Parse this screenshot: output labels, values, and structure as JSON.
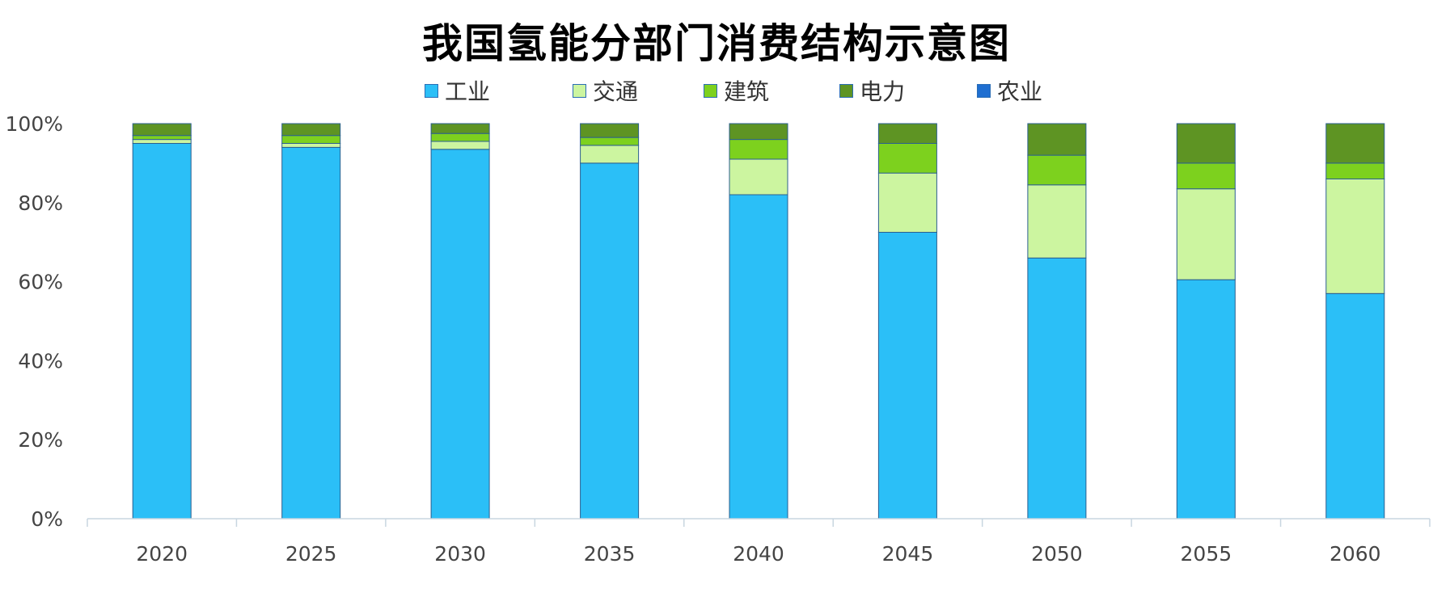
{
  "chart_data": {
    "type": "bar",
    "stacked": true,
    "title": "我国氢能分部门消费结构示意图",
    "xlabel": "",
    "ylabel": "",
    "ylim": [
      0,
      100
    ],
    "y_ticks": [
      "0%",
      "20%",
      "40%",
      "60%",
      "80%",
      "100%"
    ],
    "y_tick_values": [
      0,
      20,
      40,
      60,
      80,
      100
    ],
    "legend_position": "top-center",
    "categories": [
      "2020",
      "2025",
      "2030",
      "2035",
      "2040",
      "2045",
      "2050",
      "2055",
      "2060"
    ],
    "series": [
      {
        "name": "工业",
        "color": "#2bbff7",
        "values": [
          95,
          94,
          93.5,
          90,
          82,
          72.5,
          66,
          60.5,
          57
        ]
      },
      {
        "name": "交通",
        "color": "#ccf5a0",
        "values": [
          1,
          1,
          2,
          4.5,
          9,
          15,
          18.5,
          23,
          29
        ]
      },
      {
        "name": "建筑",
        "color": "#7dd11e",
        "values": [
          1,
          2,
          2,
          2,
          5,
          7.5,
          7.5,
          6.5,
          4
        ]
      },
      {
        "name": "电力",
        "color": "#5e9423",
        "values": [
          3,
          3,
          2.5,
          3.5,
          4,
          5,
          8,
          10,
          10
        ]
      },
      {
        "name": "农业",
        "color": "#1f6fd1",
        "values": [
          0,
          0,
          0,
          0,
          0,
          0,
          0,
          0,
          0
        ]
      }
    ]
  }
}
